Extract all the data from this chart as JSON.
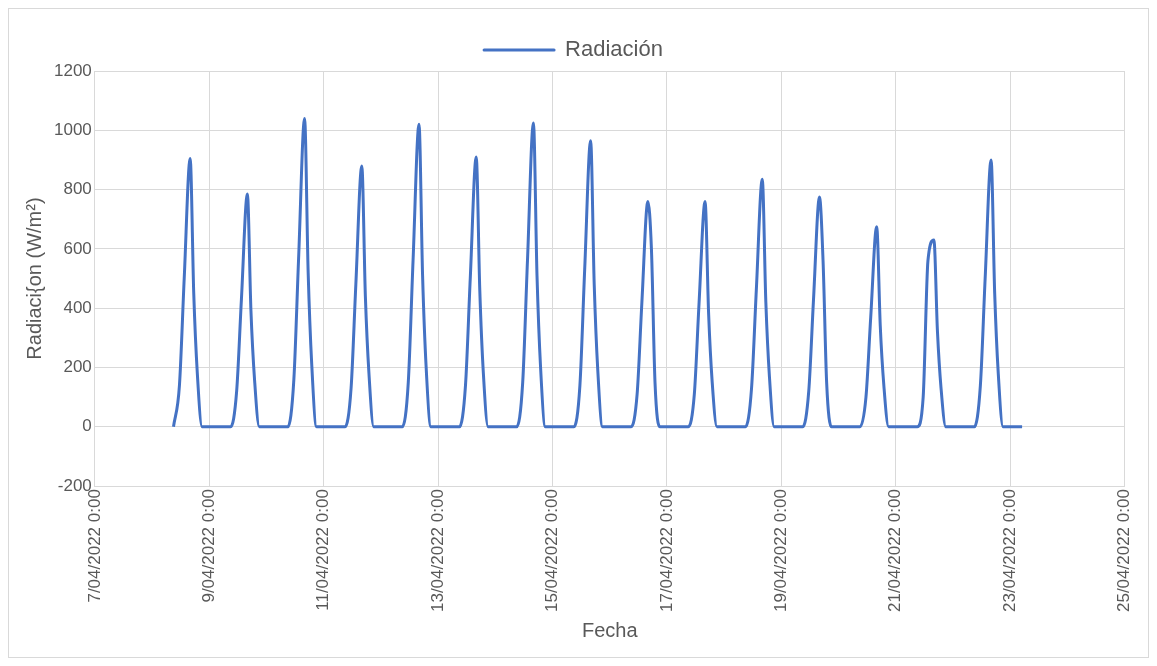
{
  "chart_data": {
    "type": "line",
    "xlabel": "Fecha",
    "ylabel": "Radiaci{on (W/m²)",
    "legend": "top",
    "grid": true,
    "ylim": [
      -200,
      1200
    ],
    "yticks": [
      -200,
      0,
      200,
      400,
      600,
      800,
      1000,
      1200
    ],
    "xlim": [
      "2022-04-07T00:00",
      "2022-04-25T00:00"
    ],
    "xticks": [
      {
        "value": "2022-04-07T00:00",
        "label": "7/04/2022 0:00"
      },
      {
        "value": "2022-04-09T00:00",
        "label": "9/04/2022 0:00"
      },
      {
        "value": "2022-04-11T00:00",
        "label": "11/04/2022 0:00"
      },
      {
        "value": "2022-04-13T00:00",
        "label": "13/04/2022 0:00"
      },
      {
        "value": "2022-04-15T00:00",
        "label": "15/04/2022 0:00"
      },
      {
        "value": "2022-04-17T00:00",
        "label": "17/04/2022 0:00"
      },
      {
        "value": "2022-04-19T00:00",
        "label": "19/04/2022 0:00"
      },
      {
        "value": "2022-04-21T00:00",
        "label": "21/04/2022 0:00"
      },
      {
        "value": "2022-04-23T00:00",
        "label": "23/04/2022 0:00"
      },
      {
        "value": "2022-04-25T00:00",
        "label": "25/04/2022 0:00"
      }
    ],
    "series": [
      {
        "name": "Radiación",
        "color": "#4472c4",
        "x": [
          "2022-04-08T09:00",
          "2022-04-08T11:30",
          "2022-04-08T13:30",
          "2022-04-08T16:00",
          "2022-04-08T17:30",
          "2022-04-08T19:00",
          "2022-04-08T21:00",
          "2022-04-09T09:00",
          "2022-04-09T11:30",
          "2022-04-09T13:30",
          "2022-04-09T16:00",
          "2022-04-09T17:30",
          "2022-04-09T19:00",
          "2022-04-09T21:00",
          "2022-04-10T09:00",
          "2022-04-10T11:30",
          "2022-04-10T13:30",
          "2022-04-10T16:00",
          "2022-04-10T17:30",
          "2022-04-10T19:00",
          "2022-04-10T21:00",
          "2022-04-11T09:00",
          "2022-04-11T11:30",
          "2022-04-11T13:30",
          "2022-04-11T16:00",
          "2022-04-11T17:30",
          "2022-04-11T19:00",
          "2022-04-11T21:00",
          "2022-04-12T09:00",
          "2022-04-12T11:30",
          "2022-04-12T13:30",
          "2022-04-12T16:00",
          "2022-04-12T17:30",
          "2022-04-12T19:00",
          "2022-04-12T21:00",
          "2022-04-13T09:00",
          "2022-04-13T11:30",
          "2022-04-13T13:30",
          "2022-04-13T16:00",
          "2022-04-13T17:30",
          "2022-04-13T19:00",
          "2022-04-13T21:00",
          "2022-04-14T09:00",
          "2022-04-14T11:30",
          "2022-04-14T13:30",
          "2022-04-14T16:00",
          "2022-04-14T17:30",
          "2022-04-14T19:00",
          "2022-04-14T21:00",
          "2022-04-15T09:00",
          "2022-04-15T11:30",
          "2022-04-15T13:30",
          "2022-04-15T16:00",
          "2022-04-15T17:30",
          "2022-04-15T19:00",
          "2022-04-15T21:00",
          "2022-04-16T09:00",
          "2022-04-16T11:30",
          "2022-04-16T13:30",
          "2022-04-16T16:00",
          "2022-04-16T17:30",
          "2022-04-16T19:00",
          "2022-04-16T21:00",
          "2022-04-17T09:00",
          "2022-04-17T11:30",
          "2022-04-17T13:30",
          "2022-04-17T16:00",
          "2022-04-17T17:30",
          "2022-04-17T19:00",
          "2022-04-17T21:00",
          "2022-04-18T09:00",
          "2022-04-18T11:30",
          "2022-04-18T13:30",
          "2022-04-18T16:00",
          "2022-04-18T17:30",
          "2022-04-18T19:00",
          "2022-04-18T21:00",
          "2022-04-19T09:00",
          "2022-04-19T11:30",
          "2022-04-19T13:30",
          "2022-04-19T16:00",
          "2022-04-19T17:30",
          "2022-04-19T19:00",
          "2022-04-19T21:00",
          "2022-04-20T09:00",
          "2022-04-20T11:30",
          "2022-04-20T13:30",
          "2022-04-20T16:00",
          "2022-04-20T17:30",
          "2022-04-20T19:00",
          "2022-04-20T21:00",
          "2022-04-21T09:00",
          "2022-04-21T11:30",
          "2022-04-21T13:30",
          "2022-04-21T16:00",
          "2022-04-21T17:30",
          "2022-04-21T19:00",
          "2022-04-21T21:00",
          "2022-04-22T09:00",
          "2022-04-22T11:30",
          "2022-04-22T13:30",
          "2022-04-22T16:00",
          "2022-04-22T17:30",
          "2022-04-22T19:00",
          "2022-04-22T21:00",
          "2022-04-23T05:00"
        ],
        "values": [
          0,
          140,
          500,
          905,
          450,
          180,
          0,
          0,
          120,
          430,
          785,
          390,
          160,
          0,
          0,
          160,
          570,
          1040,
          520,
          210,
          0,
          0,
          130,
          480,
          880,
          440,
          180,
          0,
          0,
          150,
          560,
          1020,
          510,
          200,
          0,
          0,
          140,
          500,
          910,
          460,
          180,
          0,
          0,
          150,
          560,
          1025,
          510,
          200,
          0,
          0,
          140,
          530,
          965,
          480,
          190,
          0,
          0,
          110,
          420,
          760,
          600,
          150,
          0,
          0,
          110,
          420,
          760,
          380,
          150,
          0,
          0,
          130,
          460,
          835,
          420,
          170,
          0,
          0,
          120,
          430,
          775,
          560,
          150,
          0,
          0,
          100,
          370,
          675,
          340,
          140,
          0,
          0,
          100,
          560,
          630,
          320,
          130,
          0,
          0,
          140,
          500,
          900,
          450,
          180,
          0,
          0
        ]
      }
    ]
  }
}
